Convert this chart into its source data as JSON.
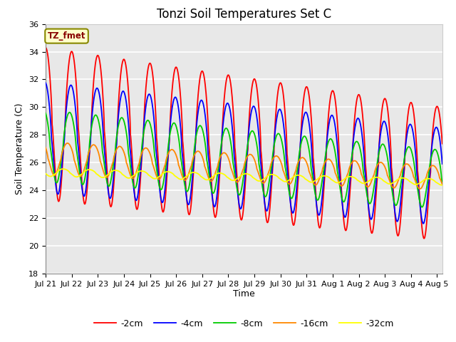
{
  "title": "Tonzi Soil Temperatures Set C",
  "xlabel": "Time",
  "ylabel": "Soil Temperature (C)",
  "ylim": [
    18,
    36
  ],
  "annotation": "TZ_fmet",
  "line_colors": [
    "#ff0000",
    "#0000ff",
    "#00cc00",
    "#ff8800",
    "#ffff00"
  ],
  "line_labels": [
    "-2cm",
    "-4cm",
    "-8cm",
    "-16cm",
    "-32cm"
  ],
  "bg_color": "#ffffff",
  "plot_bg_color": "#e8e8e8",
  "grid_color": "#ffffff",
  "xtick_labels": [
    "Jul 21",
    "Jul 22",
    "Jul 23",
    "Jul 24",
    "Jul 25",
    "Jul 26",
    "Jul 27",
    "Jul 28",
    "Jul 29",
    "Jul 30",
    "Jul 31",
    "Aug 1",
    "Aug 2",
    "Aug 3",
    "Aug 4",
    "Aug 5"
  ],
  "title_fontsize": 12,
  "axis_fontsize": 9,
  "tick_fontsize": 8
}
